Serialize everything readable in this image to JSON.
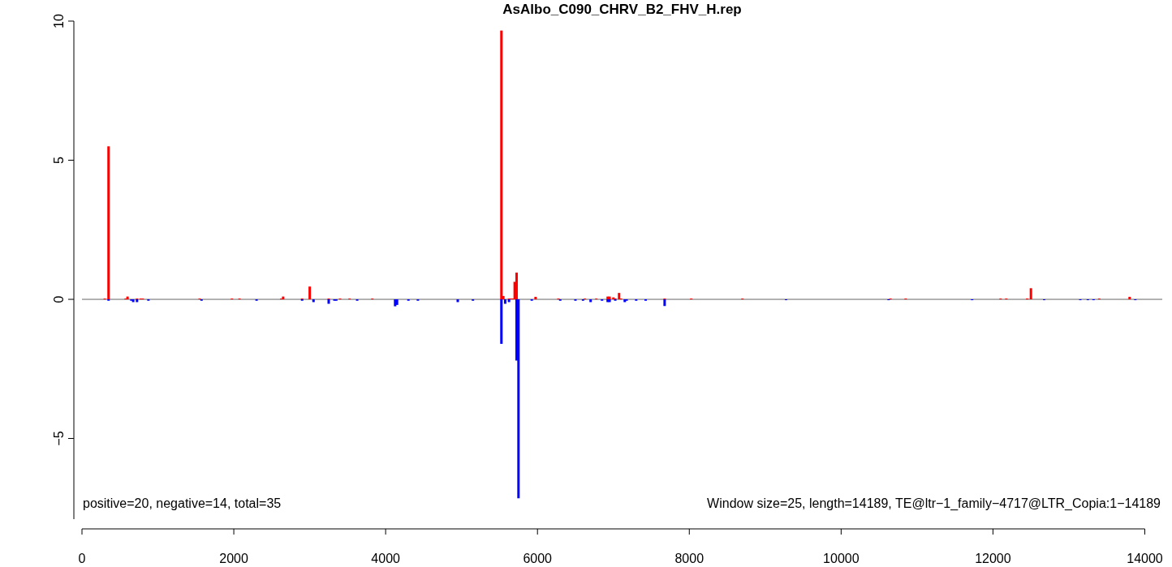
{
  "chart_data": {
    "type": "bar",
    "title": "AsAlbo_C090_CHRV_B2_FHV_H.rep",
    "xlim": [
      0,
      14230
    ],
    "ylim": [
      -7.9,
      10
    ],
    "xticks": [
      0,
      2000,
      4000,
      6000,
      8000,
      10000,
      12000,
      14000
    ],
    "yticks": [
      -5,
      0,
      5,
      10
    ],
    "grid": false,
    "series": [
      {
        "color": "#ff0000",
        "x": [
          300,
          350,
          575,
          600,
          725,
          775,
          800,
          1550,
          1975,
          2075,
          2625,
          2650,
          2900,
          3000,
          3250,
          3400,
          3525,
          3825,
          5525,
          5550,
          5625,
          5650,
          5675,
          5700,
          5725,
          5975,
          6275,
          6625,
          6775,
          6925,
          6950,
          7000,
          7025,
          7075,
          7100,
          7675,
          8025,
          8700,
          10650,
          10850,
          12100,
          12175,
          12450,
          12500,
          13400,
          13800
        ],
        "values": [
          0.03,
          5.5,
          0.03,
          0.1,
          0.03,
          0.03,
          0.03,
          0.03,
          0.03,
          0.03,
          0.03,
          0.1,
          0.03,
          0.46,
          0.03,
          0.03,
          0.03,
          0.03,
          9.66,
          0.12,
          0.03,
          0.03,
          0.03,
          0.63,
          0.96,
          0.09,
          0.03,
          0.03,
          0.03,
          0.1,
          0.1,
          0.07,
          0.03,
          0.23,
          0.03,
          0.03,
          0.03,
          0.03,
          0.03,
          0.03,
          0.03,
          0.03,
          0.03,
          0.4,
          0.03,
          0.09
        ]
      },
      {
        "color": "#0000ff",
        "x": [
          350,
          650,
          675,
          725,
          875,
          1575,
          2300,
          2900,
          3050,
          3250,
          3325,
          3350,
          3625,
          4125,
          4150,
          4300,
          4425,
          4950,
          5150,
          5525,
          5575,
          5625,
          5725,
          5750,
          5925,
          6300,
          6500,
          6600,
          6700,
          6850,
          6925,
          6950,
          7025,
          7150,
          7175,
          7300,
          7425,
          7675,
          9275,
          10625,
          11725,
          12675,
          13150,
          13250,
          13325,
          13875
        ],
        "values": [
          -0.05,
          -0.05,
          -0.1,
          -0.1,
          -0.05,
          -0.05,
          -0.05,
          -0.05,
          -0.1,
          -0.16,
          -0.05,
          -0.05,
          -0.05,
          -0.25,
          -0.2,
          -0.05,
          -0.05,
          -0.1,
          -0.05,
          -1.6,
          -0.16,
          -0.1,
          -2.2,
          -7.15,
          -0.05,
          -0.05,
          -0.05,
          -0.05,
          -0.1,
          -0.05,
          -0.1,
          -0.1,
          -0.05,
          -0.1,
          -0.05,
          -0.05,
          -0.05,
          -0.24,
          -0.03,
          -0.03,
          -0.03,
          -0.03,
          -0.03,
          -0.03,
          -0.03,
          -0.03
        ]
      }
    ],
    "ref_lines": [
      {
        "axis": "y",
        "value": 0,
        "color": "#666666"
      }
    ],
    "annotations": [
      "positive=20, negative=14, total=35",
      "Window size=25, length=14189, TE@ltr−1_family−4717@LTR_Copia:1−14189"
    ]
  }
}
